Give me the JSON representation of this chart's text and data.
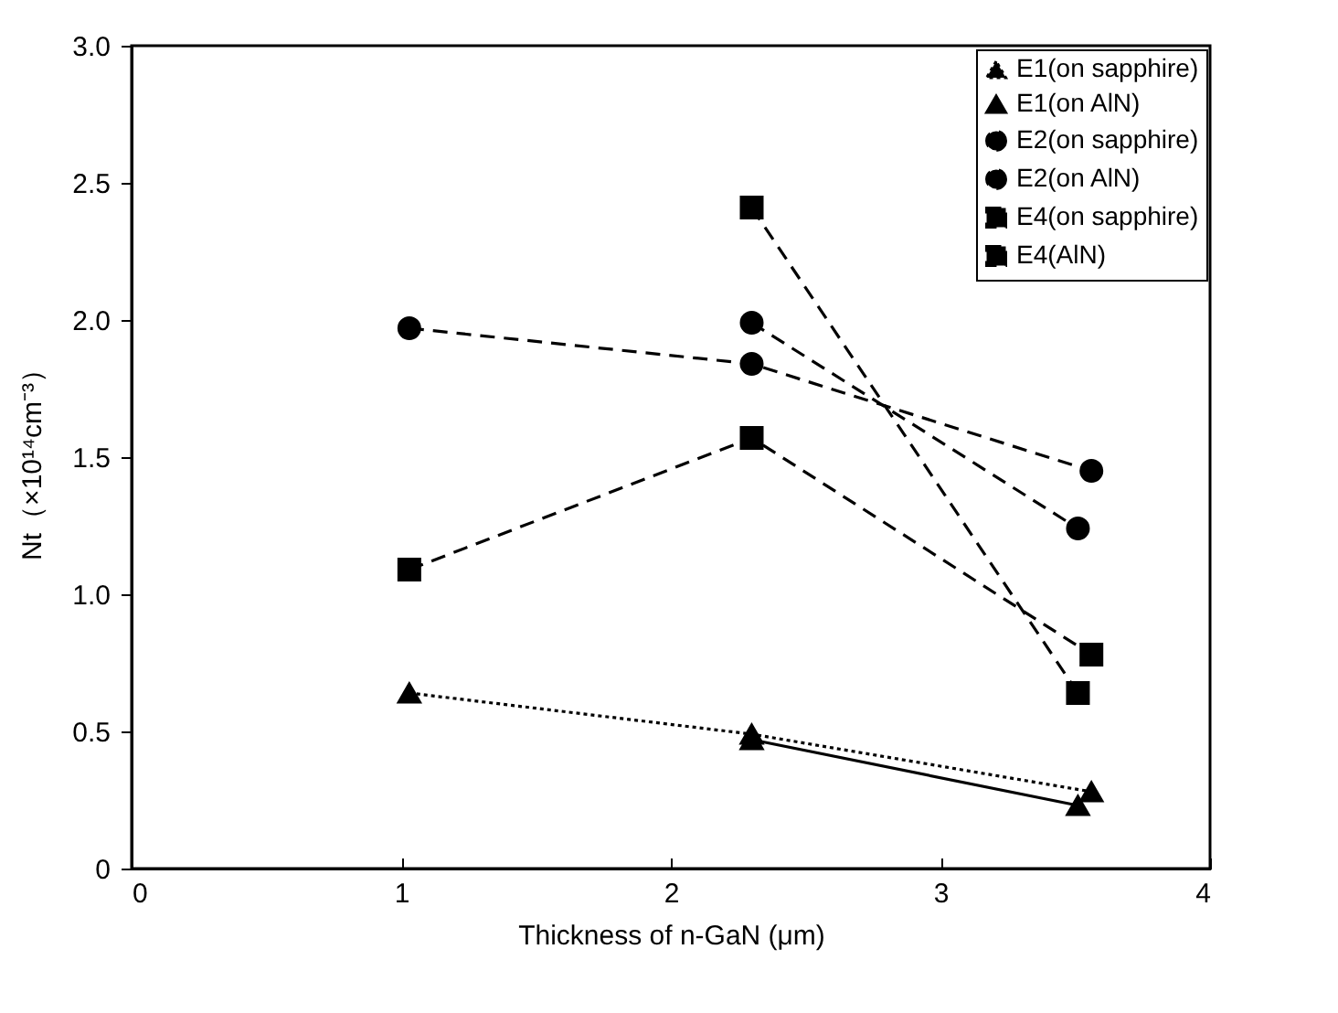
{
  "chart_data": {
    "type": "line",
    "xlabel": "Thickness of n-GaN (μm)",
    "ylabel": "Nt（×10¹⁴cm⁻³）",
    "xlim": [
      0,
      4
    ],
    "xticks": [
      0,
      1,
      2,
      3,
      4
    ],
    "ylim": [
      0,
      3
    ],
    "yticks": [
      0,
      0.5,
      {
        "value": 1,
        "label": "1.0"
      },
      1.5,
      {
        "value": 2,
        "label": "2.0"
      },
      2.5,
      {
        "value": 3,
        "label": "3.0"
      }
    ],
    "grid": false,
    "legend": "top right",
    "series": [
      {
        "name": "E1(on sapphire)",
        "color": "#000000",
        "marker": "triangle",
        "line_style": "dotted",
        "x": [
          1.03,
          2.3,
          3.56
        ],
        "values": [
          0.64,
          0.49,
          0.28
        ]
      },
      {
        "name": "E1(on AlN)",
        "color": "#000000",
        "marker": "triangle",
        "line_style": "solid",
        "x": [
          2.3,
          3.51
        ],
        "values": [
          0.47,
          0.23
        ]
      },
      {
        "name": "E2(on sapphire)",
        "color": "#000000",
        "marker": "circle",
        "line_style": "dashed",
        "x": [
          1.03,
          2.3,
          3.56
        ],
        "values": [
          1.97,
          1.84,
          1.45
        ]
      },
      {
        "name": "E2(on AlN)",
        "color": "#000000",
        "marker": "circle",
        "line_style": "dashed",
        "x": [
          2.3,
          3.51
        ],
        "values": [
          1.99,
          1.24
        ]
      },
      {
        "name": "E4(on sapphire)",
        "color": "#000000",
        "marker": "square",
        "line_style": "dashed",
        "x": [
          1.03,
          2.3,
          3.56
        ],
        "values": [
          1.09,
          1.57,
          0.78
        ]
      },
      {
        "name": "E4(AlN)",
        "color": "#000000",
        "marker": "square",
        "line_style": "dashed",
        "x": [
          2.3,
          3.51
        ],
        "values": [
          2.41,
          0.64
        ]
      }
    ]
  }
}
